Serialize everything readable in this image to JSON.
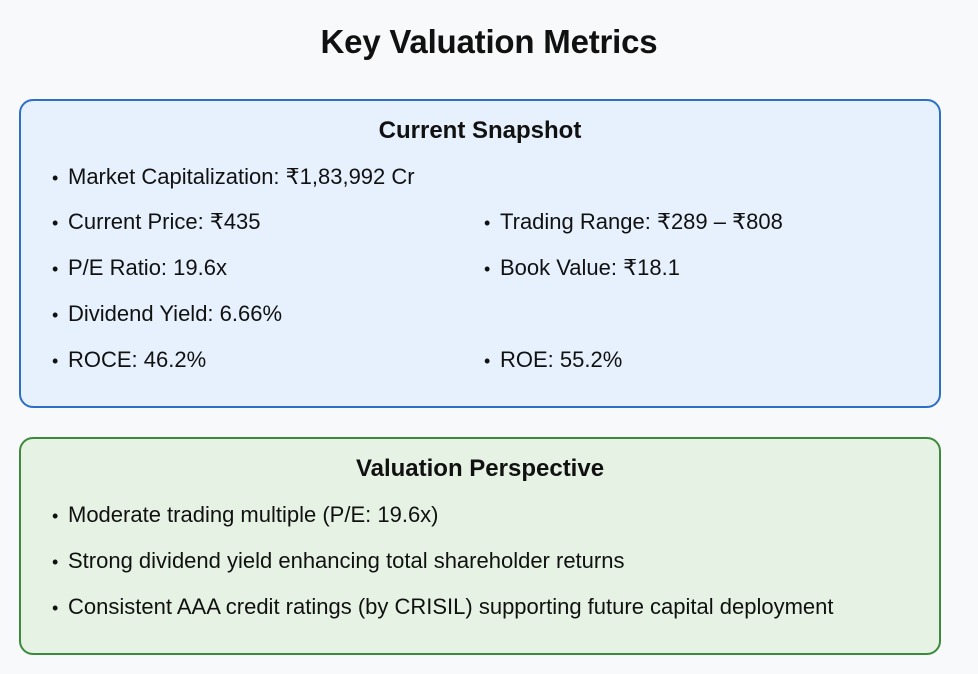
{
  "page": {
    "title": "Key Valuation Metrics"
  },
  "snapshot": {
    "title": "Current Snapshot",
    "market_cap": "Market Capitalization: ₹1,83,992 Cr",
    "current_price": "Current Price: ₹435",
    "trading_range": "Trading Range: ₹289 – ₹808",
    "pe_ratio": "P/E Ratio: 19.6x",
    "book_value": "Book Value: ₹18.1",
    "dividend_yield": "Dividend Yield: 6.66%",
    "roce": "ROCE: 46.2%",
    "roe": "ROE: 55.2%"
  },
  "perspective": {
    "title": "Valuation Perspective",
    "items": [
      "Moderate trading multiple (P/E: 19.6x)",
      "Strong dividend yield enhancing total shareholder returns",
      "Consistent AAA credit ratings (by CRISIL) supporting future capital deployment"
    ]
  },
  "colors": {
    "snapshot_bg": "#e6f1fd",
    "snapshot_border": "#2d6fc4",
    "perspective_bg": "#e6f3e4",
    "perspective_border": "#3d8a3d"
  }
}
